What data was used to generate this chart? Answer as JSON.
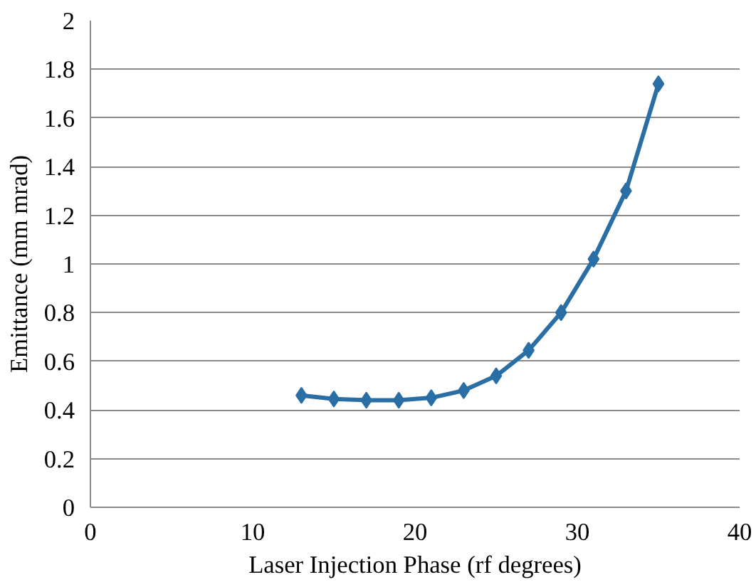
{
  "chart_data": {
    "type": "line",
    "xlabel": "Laser Injection Phase (rf degrees)",
    "ylabel": "Emittance (mm mrad)",
    "x": [
      13,
      15,
      17,
      19,
      21,
      23,
      25,
      27,
      29,
      31,
      33,
      35
    ],
    "series": [
      {
        "color": "#2a6ea6",
        "values": [
          0.46,
          0.445,
          0.44,
          0.44,
          0.45,
          0.48,
          0.54,
          0.645,
          0.8,
          1.02,
          1.3,
          1.74
        ]
      }
    ],
    "xlim": [
      0,
      40
    ],
    "xticks": [
      0,
      10,
      20,
      30,
      40
    ],
    "ylim": [
      0,
      2
    ],
    "yticks": [
      0,
      {
        "value": 0.2,
        "label": "0.2"
      },
      {
        "value": 0.4,
        "label": "0.4"
      },
      {
        "value": 0.6,
        "label": "0.6"
      },
      {
        "value": 0.8,
        "label": "0.8"
      },
      1,
      {
        "value": 1.2,
        "label": "1.2"
      },
      {
        "value": 1.4,
        "label": "1.4"
      },
      {
        "value": 1.6,
        "label": "1.6"
      },
      {
        "value": 1.8,
        "label": "1.8"
      },
      2
    ],
    "grid": "y",
    "marker": "diamond",
    "line_style": "solid"
  }
}
